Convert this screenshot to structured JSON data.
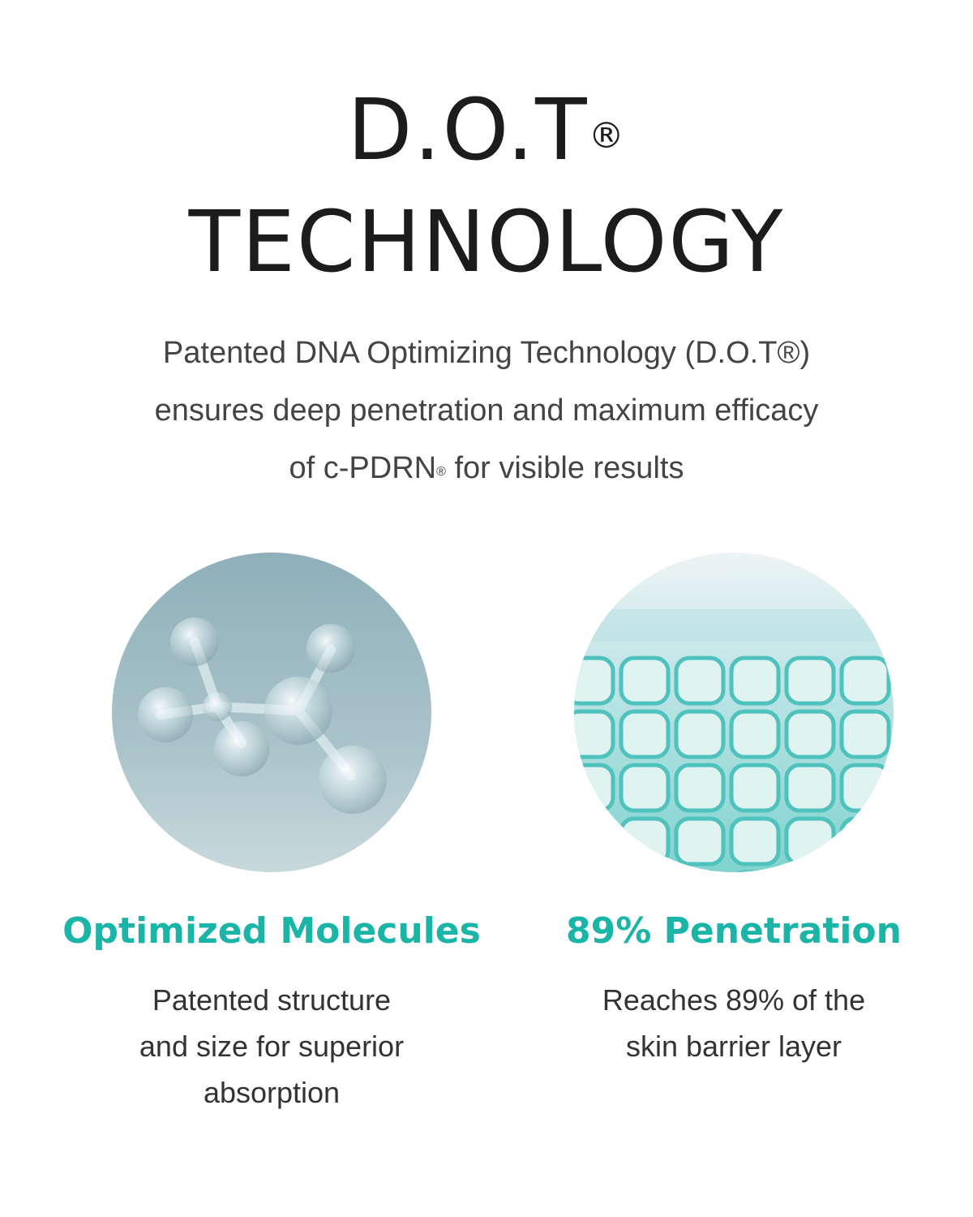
{
  "title": {
    "line1": "D.O.T",
    "registered": "®",
    "line2": "TECHNOLOGY"
  },
  "intro": {
    "line1": "Patented DNA Optimizing Technology (D.O.T®)",
    "line2": "ensures deep penetration and maximum efficacy",
    "line3_pre": "of c-PDRN",
    "line3_reg": "®",
    "line3_post": " for visible results"
  },
  "features": [
    {
      "title": "Optimized Molecules",
      "lines": [
        "Patented structure",
        "and size for superior",
        "absorption"
      ],
      "image": "glass-molecule"
    },
    {
      "title": "89% Penetration",
      "lines": [
        "Reaches 89% of the",
        "skin barrier layer"
      ],
      "image": "teal-cell-grid"
    }
  ],
  "colors": {
    "accent": "#1bb5a8",
    "heading": "#1c1c1c",
    "body": "#444444"
  }
}
